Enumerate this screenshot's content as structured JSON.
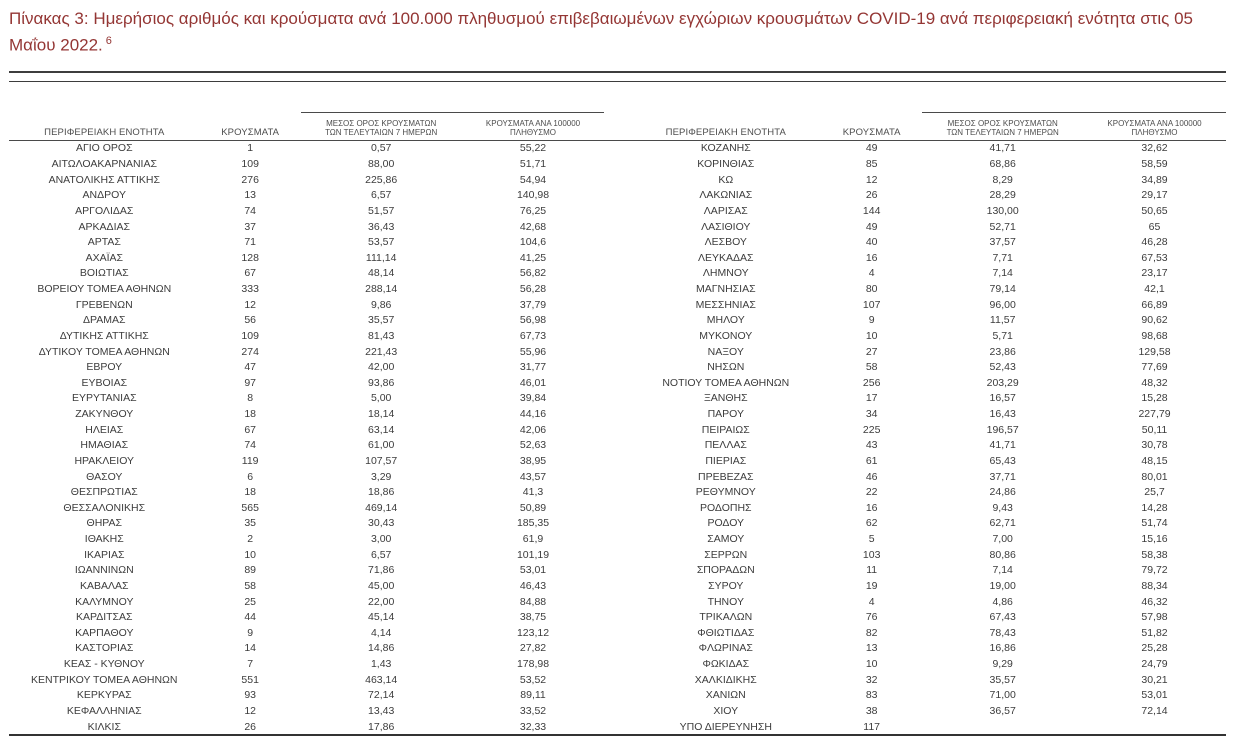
{
  "title": {
    "text": "Πίνακας 3:  Ημερήσιος αριθμός και κρούσματα ανά 100.000 πληθυσμού επιβεβαιωμένων εγχώριων κρουσμάτων COVID-19 ανά περιφερειακή ενότητα στις 05 Μαΐου 2022.",
    "footnote_ref": "6"
  },
  "colors": {
    "title_red": "#943634",
    "rule_gray": "#3d3d3d",
    "text_gray": "#3c3c3c"
  },
  "table": {
    "headers": {
      "region": "ΠΕΡΙΦΕΡΕΙΑΚΗ ΕΝΟΤΗΤΑ",
      "cases": "ΚΡΟΥΣΜΑΤΑ",
      "avg7_line1": "ΜΕΣΟΣ ΟΡΟΣ ΚΡΟΥΣΜΑΤΩΝ",
      "avg7_line2": "ΤΩΝ ΤΕΛΕΥΤΑΙΩΝ 7 ΗΜΕΡΩΝ",
      "per100k_line1": "ΚΡΟΥΣΜΑΤΑ ΑΝΑ 100000",
      "per100k_line2": "ΠΛΗΘΥΣΜΟ"
    },
    "left_rows": [
      [
        "ΑΓΙΟ ΟΡΟΣ",
        "1",
        "0,57",
        "55,22"
      ],
      [
        "ΑΙΤΩΛΟΑΚΑΡΝΑΝΙΑΣ",
        "109",
        "88,00",
        "51,71"
      ],
      [
        "ΑΝΑΤΟΛΙΚΗΣ ΑΤΤΙΚΗΣ",
        "276",
        "225,86",
        "54,94"
      ],
      [
        "ΑΝΔΡΟΥ",
        "13",
        "6,57",
        "140,98"
      ],
      [
        "ΑΡΓΟΛΙΔΑΣ",
        "74",
        "51,57",
        "76,25"
      ],
      [
        "ΑΡΚΑΔΙΑΣ",
        "37",
        "36,43",
        "42,68"
      ],
      [
        "ΑΡΤΑΣ",
        "71",
        "53,57",
        "104,6"
      ],
      [
        "ΑΧΑΪΑΣ",
        "128",
        "111,14",
        "41,25"
      ],
      [
        "ΒΟΙΩΤΙΑΣ",
        "67",
        "48,14",
        "56,82"
      ],
      [
        "ΒΟΡΕΙΟΥ ΤΟΜΕΑ ΑΘΗΝΩΝ",
        "333",
        "288,14",
        "56,28"
      ],
      [
        "ΓΡΕΒΕΝΩΝ",
        "12",
        "9,86",
        "37,79"
      ],
      [
        "ΔΡΑΜΑΣ",
        "56",
        "35,57",
        "56,98"
      ],
      [
        "ΔΥΤΙΚΗΣ ΑΤΤΙΚΗΣ",
        "109",
        "81,43",
        "67,73"
      ],
      [
        "ΔΥΤΙΚΟΥ ΤΟΜΕΑ ΑΘΗΝΩΝ",
        "274",
        "221,43",
        "55,96"
      ],
      [
        "ΕΒΡΟΥ",
        "47",
        "42,00",
        "31,77"
      ],
      [
        "ΕΥΒΟΙΑΣ",
        "97",
        "93,86",
        "46,01"
      ],
      [
        "ΕΥΡΥΤΑΝΙΑΣ",
        "8",
        "5,00",
        "39,84"
      ],
      [
        "ΖΑΚΥΝΘΟΥ",
        "18",
        "18,14",
        "44,16"
      ],
      [
        "ΗΛΕΙΑΣ",
        "67",
        "63,14",
        "42,06"
      ],
      [
        "ΗΜΑΘΙΑΣ",
        "74",
        "61,00",
        "52,63"
      ],
      [
        "ΗΡΑΚΛΕΙΟΥ",
        "119",
        "107,57",
        "38,95"
      ],
      [
        "ΘΑΣΟΥ",
        "6",
        "3,29",
        "43,57"
      ],
      [
        "ΘΕΣΠΡΩΤΙΑΣ",
        "18",
        "18,86",
        "41,3"
      ],
      [
        "ΘΕΣΣΑΛΟΝΙΚΗΣ",
        "565",
        "469,14",
        "50,89"
      ],
      [
        "ΘΗΡΑΣ",
        "35",
        "30,43",
        "185,35"
      ],
      [
        "ΙΘΑΚΗΣ",
        "2",
        "3,00",
        "61,9"
      ],
      [
        "ΙΚΑΡΙΑΣ",
        "10",
        "6,57",
        "101,19"
      ],
      [
        "ΙΩΑΝΝΙΝΩΝ",
        "89",
        "71,86",
        "53,01"
      ],
      [
        "ΚΑΒΑΛΑΣ",
        "58",
        "45,00",
        "46,43"
      ],
      [
        "ΚΑΛΥΜΝΟΥ",
        "25",
        "22,00",
        "84,88"
      ],
      [
        "ΚΑΡΔΙΤΣΑΣ",
        "44",
        "45,14",
        "38,75"
      ],
      [
        "ΚΑΡΠΑΘΟΥ",
        "9",
        "4,14",
        "123,12"
      ],
      [
        "ΚΑΣΤΟΡΙΑΣ",
        "14",
        "14,86",
        "27,82"
      ],
      [
        "ΚΕΑΣ - ΚΥΘΝΟΥ",
        "7",
        "1,43",
        "178,98"
      ],
      [
        "ΚΕΝΤΡΙΚΟΥ ΤΟΜΕΑ ΑΘΗΝΩΝ",
        "551",
        "463,14",
        "53,52"
      ],
      [
        "ΚΕΡΚΥΡΑΣ",
        "93",
        "72,14",
        "89,11"
      ],
      [
        "ΚΕΦΑΛΛΗΝΙΑΣ",
        "12",
        "13,43",
        "33,52"
      ],
      [
        "ΚΙΛΚΙΣ",
        "26",
        "17,86",
        "32,33"
      ]
    ],
    "right_rows": [
      [
        "ΚΟΖΑΝΗΣ",
        "49",
        "41,71",
        "32,62"
      ],
      [
        "ΚΟΡΙΝΘΙΑΣ",
        "85",
        "68,86",
        "58,59"
      ],
      [
        "ΚΩ",
        "12",
        "8,29",
        "34,89"
      ],
      [
        "ΛΑΚΩΝΙΑΣ",
        "26",
        "28,29",
        "29,17"
      ],
      [
        "ΛΑΡΙΣΑΣ",
        "144",
        "130,00",
        "50,65"
      ],
      [
        "ΛΑΣΙΘΙΟΥ",
        "49",
        "52,71",
        "65"
      ],
      [
        "ΛΕΣΒΟΥ",
        "40",
        "37,57",
        "46,28"
      ],
      [
        "ΛΕΥΚΑΔΑΣ",
        "16",
        "7,71",
        "67,53"
      ],
      [
        "ΛΗΜΝΟΥ",
        "4",
        "7,14",
        "23,17"
      ],
      [
        "ΜΑΓΝΗΣΙΑΣ",
        "80",
        "79,14",
        "42,1"
      ],
      [
        "ΜΕΣΣΗΝΙΑΣ",
        "107",
        "96,00",
        "66,89"
      ],
      [
        "ΜΗΛΟΥ",
        "9",
        "11,57",
        "90,62"
      ],
      [
        "ΜΥΚΟΝΟΥ",
        "10",
        "5,71",
        "98,68"
      ],
      [
        "ΝΑΞΟΥ",
        "27",
        "23,86",
        "129,58"
      ],
      [
        "ΝΗΣΩΝ",
        "58",
        "52,43",
        "77,69"
      ],
      [
        "ΝΟΤΙΟΥ ΤΟΜΕΑ ΑΘΗΝΩΝ",
        "256",
        "203,29",
        "48,32"
      ],
      [
        "ΞΑΝΘΗΣ",
        "17",
        "16,57",
        "15,28"
      ],
      [
        "ΠΑΡΟΥ",
        "34",
        "16,43",
        "227,79"
      ],
      [
        "ΠΕΙΡΑΙΩΣ",
        "225",
        "196,57",
        "50,11"
      ],
      [
        "ΠΕΛΛΑΣ",
        "43",
        "41,71",
        "30,78"
      ],
      [
        "ΠΙΕΡΙΑΣ",
        "61",
        "65,43",
        "48,15"
      ],
      [
        "ΠΡΕΒΕΖΑΣ",
        "46",
        "37,71",
        "80,01"
      ],
      [
        "ΡΕΘΥΜΝΟΥ",
        "22",
        "24,86",
        "25,7"
      ],
      [
        "ΡΟΔΟΠΗΣ",
        "16",
        "9,43",
        "14,28"
      ],
      [
        "ΡΟΔΟΥ",
        "62",
        "62,71",
        "51,74"
      ],
      [
        "ΣΑΜΟΥ",
        "5",
        "7,00",
        "15,16"
      ],
      [
        "ΣΕΡΡΩΝ",
        "103",
        "80,86",
        "58,38"
      ],
      [
        "ΣΠΟΡΑΔΩΝ",
        "11",
        "7,14",
        "79,72"
      ],
      [
        "ΣΥΡΟΥ",
        "19",
        "19,00",
        "88,34"
      ],
      [
        "ΤΗΝΟΥ",
        "4",
        "4,86",
        "46,32"
      ],
      [
        "ΤΡΙΚΑΛΩΝ",
        "76",
        "67,43",
        "57,98"
      ],
      [
        "ΦΘΙΩΤΙΔΑΣ",
        "82",
        "78,43",
        "51,82"
      ],
      [
        "ΦΛΩΡΙΝΑΣ",
        "13",
        "16,86",
        "25,28"
      ],
      [
        "ΦΩΚΙΔΑΣ",
        "10",
        "9,29",
        "24,79"
      ],
      [
        "ΧΑΛΚΙΔΙΚΗΣ",
        "32",
        "35,57",
        "30,21"
      ],
      [
        "ΧΑΝΙΩΝ",
        "83",
        "71,00",
        "53,01"
      ],
      [
        "ΧΙΟΥ",
        "38",
        "36,57",
        "72,14"
      ],
      [
        "ΥΠΟ ΔΙΕΡΕΥΝΗΣΗ",
        "117",
        "",
        ""
      ]
    ]
  }
}
